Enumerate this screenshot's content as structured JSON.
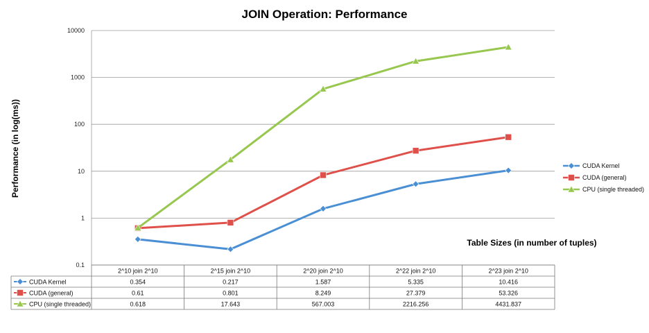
{
  "chart_data": {
    "type": "line",
    "title": "JOIN Operation: Performance",
    "ylabel": "Performance (in log(ms))",
    "xlabel": "Table Sizes (in number of tuples)",
    "yscale": "log",
    "ylim": [
      0.1,
      10000
    ],
    "yticks": [
      "0.1",
      "1",
      "10",
      "100",
      "1000",
      "10000"
    ],
    "categories": [
      "2^10 join 2^10",
      "2^15 join 2^10",
      "2^20 join 2^10",
      "2^22 join 2^10",
      "2^23 join 2^10"
    ],
    "series": [
      {
        "name": "CUDA Kernel",
        "values": [
          0.354,
          0.217,
          1.587,
          5.335,
          10.416
        ],
        "value_labels": [
          "0.354",
          "0.217",
          "1.587",
          "5.335",
          "10.416"
        ],
        "color": "#4a8fd4",
        "marker": "diamond"
      },
      {
        "name": "CUDA (general)",
        "values": [
          0.61,
          0.801,
          8.249,
          27.379,
          53.326
        ],
        "value_labels": [
          "0.61",
          "0.801",
          "8.249",
          "27.379",
          "53.326"
        ],
        "color": "#e0504a",
        "marker": "square"
      },
      {
        "name": "CPU (single threaded)",
        "values": [
          0.618,
          17.643,
          567.003,
          2216.256,
          4431.837
        ],
        "value_labels": [
          "0.618",
          "17.643",
          "567.003",
          "2216.256",
          "4431.837"
        ],
        "color": "#98c750",
        "marker": "triangle"
      }
    ],
    "grid": true,
    "legend": "right",
    "data_table": true
  }
}
